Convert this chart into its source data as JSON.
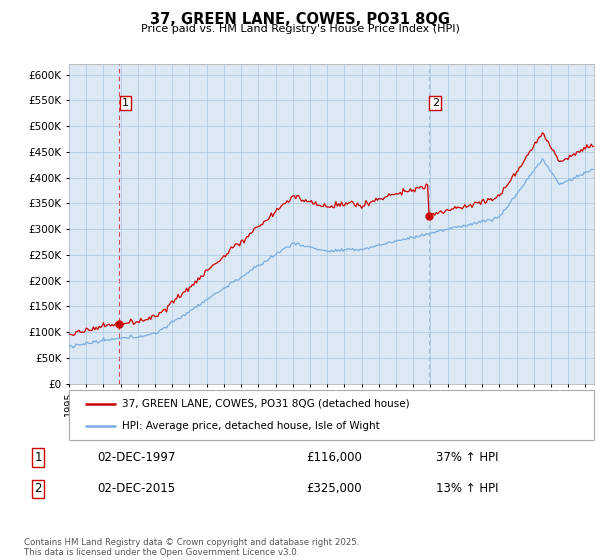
{
  "title": "37, GREEN LANE, COWES, PO31 8QG",
  "subtitle": "Price paid vs. HM Land Registry's House Price Index (HPI)",
  "ylabel_ticks": [
    "£0",
    "£50K",
    "£100K",
    "£150K",
    "£200K",
    "£250K",
    "£300K",
    "£350K",
    "£400K",
    "£450K",
    "£500K",
    "£550K",
    "£600K"
  ],
  "ytick_values": [
    0,
    50000,
    100000,
    150000,
    200000,
    250000,
    300000,
    350000,
    400000,
    450000,
    500000,
    550000,
    600000
  ],
  "ylim": [
    0,
    620000
  ],
  "xlim_start": 1995.0,
  "xlim_end": 2025.5,
  "purchase1_x": 1997.92,
  "purchase1_y": 116000,
  "purchase1_label": "1",
  "purchase1_date": "02-DEC-1997",
  "purchase1_price": "£116,000",
  "purchase1_hpi": "37% ↑ HPI",
  "purchase2_x": 2015.92,
  "purchase2_y": 325000,
  "purchase2_label": "2",
  "purchase2_date": "02-DEC-2015",
  "purchase2_price": "£325,000",
  "purchase2_hpi": "13% ↑ HPI",
  "red_line_color": "#cc0000",
  "blue_line_color": "#7aade0",
  "vline1_color": "#cc0000",
  "vline2_color": "#8aabcc",
  "chart_bg_color": "#dce9f5",
  "legend_label_red": "37, GREEN LANE, COWES, PO31 8QG (detached house)",
  "legend_label_blue": "HPI: Average price, detached house, Isle of Wight",
  "footnote": "Contains HM Land Registry data © Crown copyright and database right 2025.\nThis data is licensed under the Open Government Licence v3.0.",
  "background_color": "#ffffff",
  "grid_color": "#aac5dd"
}
